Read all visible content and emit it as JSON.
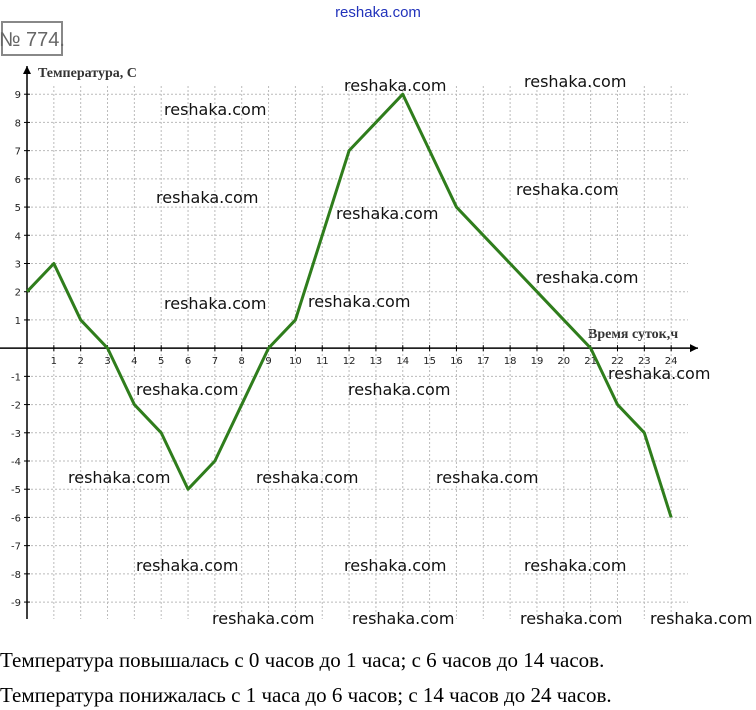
{
  "header": {
    "site": "reshaka.com",
    "problem": "№ 774."
  },
  "chart_data": {
    "type": "line",
    "x_label": "Время суток,ч",
    "y_label": "Температура, С",
    "x": [
      0,
      1,
      2,
      3,
      4,
      5,
      6,
      7,
      8,
      9,
      10,
      11,
      12,
      13,
      14,
      15,
      16,
      17,
      18,
      19,
      20,
      21,
      22,
      23,
      24
    ],
    "series": [
      {
        "color": "#2f7d1c",
        "values": [
          2,
          3,
          1,
          0,
          -2,
          -3,
          -5,
          -4,
          -2,
          0,
          1,
          4,
          7,
          8,
          9,
          7,
          5,
          4,
          3,
          2,
          1,
          0,
          -2,
          -3,
          -6
        ]
      }
    ],
    "xlim": [
      0,
      25
    ],
    "ylim": [
      -9.6,
      10
    ],
    "xticks": [
      1,
      2,
      3,
      4,
      5,
      6,
      7,
      8,
      9,
      10,
      11,
      12,
      13,
      14,
      15,
      16,
      17,
      18,
      19,
      20,
      21,
      22,
      23,
      24
    ],
    "yticks": [
      -9,
      -8,
      -7,
      -6,
      -5,
      -4,
      -3,
      -2,
      -1,
      1,
      2,
      3,
      4,
      5,
      6,
      7,
      8,
      9
    ],
    "grid": true
  },
  "watermarks": [
    "reshaka.com",
    "reshaka.com",
    "reshaka.com",
    "reshaka.com",
    "reshaka.com",
    "reshaka.com",
    "reshaka.com",
    "reshaka.com",
    "reshaka.com",
    "reshaka.com",
    "reshaka.com",
    "reshaka.com",
    "reshaka.com",
    "reshaka.com",
    "reshaka.com",
    "reshaka.com",
    "reshaka.com",
    "reshaka.com",
    "reshaka.com",
    "reshaka.com",
    "reshaka.com",
    "reshaka.com"
  ],
  "answer": [
    "Температура повышалась с 0 часов до 1 часа; с 6 часов до 14 часов.",
    "Температура понижалась с 1 часа до 6 часов; с 14 часов до 24 часов."
  ]
}
